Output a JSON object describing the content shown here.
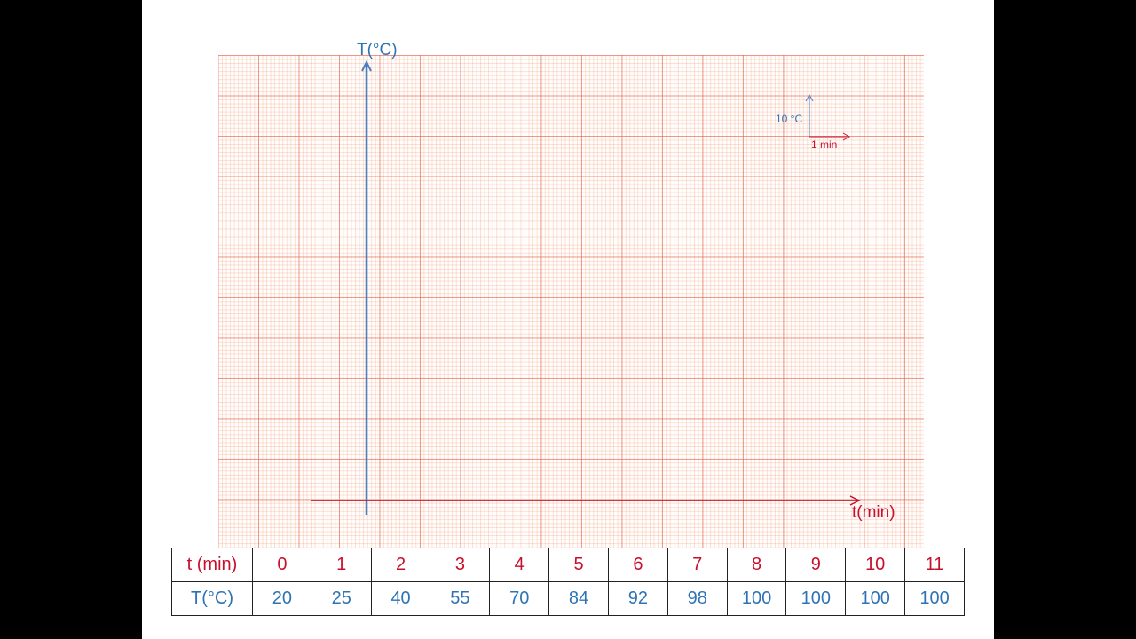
{
  "colors": {
    "background": "#000000",
    "slide": "#ffffff",
    "t_color": "#c8102e",
    "T_color": "#2e74b5"
  },
  "chart_data": {
    "type": "table",
    "xlabel": "t(min)",
    "ylabel": "T(°C)",
    "scale_legend": {
      "vertical": "10 °C",
      "horizontal": "1 min"
    },
    "grid": true,
    "table": {
      "row_labels": [
        "t (min)",
        "T(°C)"
      ],
      "t": [
        0,
        1,
        2,
        3,
        4,
        5,
        6,
        7,
        8,
        9,
        10,
        11
      ],
      "T": [
        20,
        25,
        40,
        55,
        70,
        84,
        92,
        98,
        100,
        100,
        100,
        100
      ]
    }
  }
}
